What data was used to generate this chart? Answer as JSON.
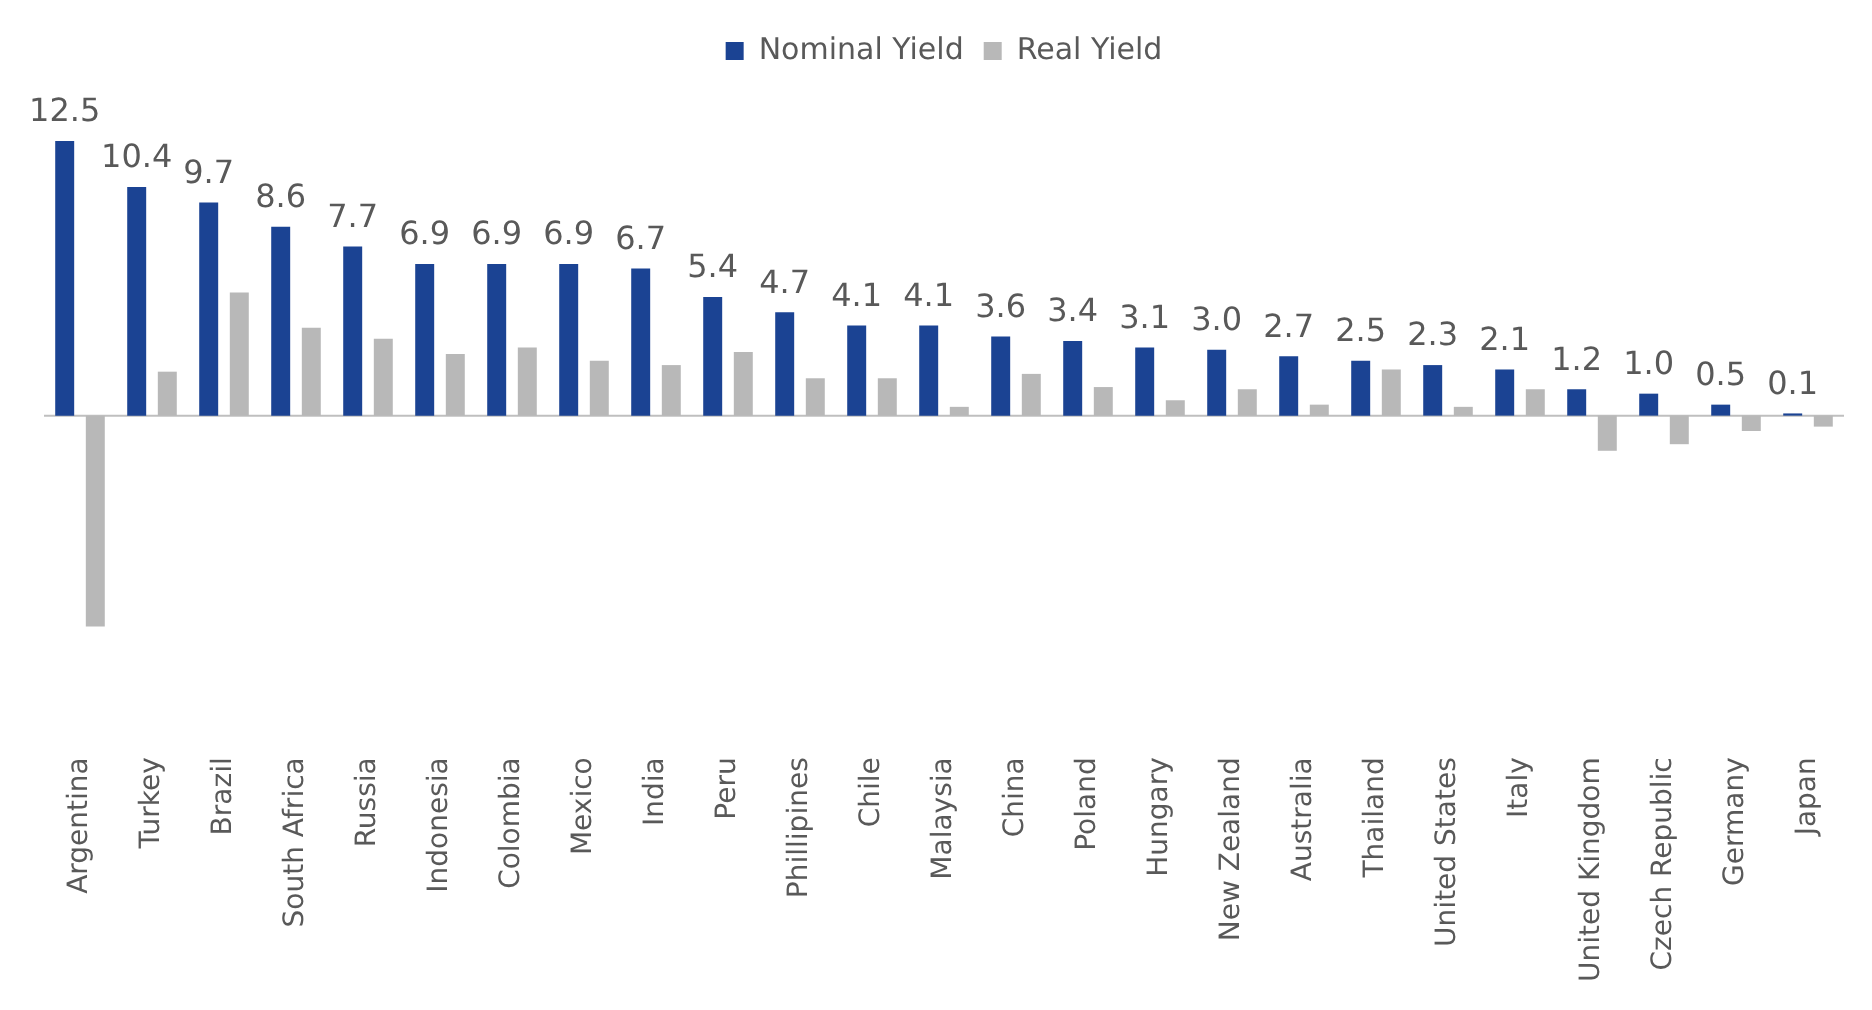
{
  "chart_data": {
    "type": "bar",
    "categories": [
      "Argentina",
      "Turkey",
      "Brazil",
      "South Africa",
      "Russia",
      "Indonesia",
      "Colombia",
      "Mexico",
      "India",
      "Peru",
      "Phillipines",
      "Chile",
      "Malaysia",
      "China",
      "Poland",
      "Hungary",
      "New Zealand",
      "Australia",
      "Thailand",
      "United States",
      "Italy",
      "United Kingdom",
      "Czech Republic",
      "Germany",
      "Japan"
    ],
    "series": [
      {
        "name": "Nominal Yield",
        "color": "#1b4393",
        "values": [
          12.5,
          10.4,
          9.7,
          8.6,
          7.7,
          6.9,
          6.9,
          6.9,
          6.7,
          5.4,
          4.7,
          4.1,
          4.1,
          3.6,
          3.4,
          3.1,
          3.0,
          2.7,
          2.5,
          2.3,
          2.1,
          1.2,
          1.0,
          0.5,
          0.1
        ],
        "value_labels": [
          "12.5",
          "10.4",
          "9.7",
          "8.6",
          "7.7",
          "6.9",
          "6.9",
          "6.9",
          "6.7",
          "5.4",
          "4.7",
          "4.1",
          "4.1",
          "3.6",
          "3.4",
          "3.1",
          "3.0",
          "2.7",
          "2.5",
          "2.3",
          "2.1",
          "1.2",
          "1.0",
          "0.5",
          "0.1"
        ]
      },
      {
        "name": "Real Yield",
        "color": "#b8b8b8",
        "values": [
          -9.6,
          2.0,
          5.6,
          4.0,
          3.5,
          2.8,
          3.1,
          2.5,
          2.3,
          2.9,
          1.7,
          1.7,
          0.4,
          1.9,
          1.3,
          0.7,
          1.2,
          0.5,
          2.1,
          0.4,
          1.2,
          -1.6,
          -1.3,
          -0.7,
          -0.5
        ]
      }
    ],
    "legend": "top",
    "grid": false
  }
}
